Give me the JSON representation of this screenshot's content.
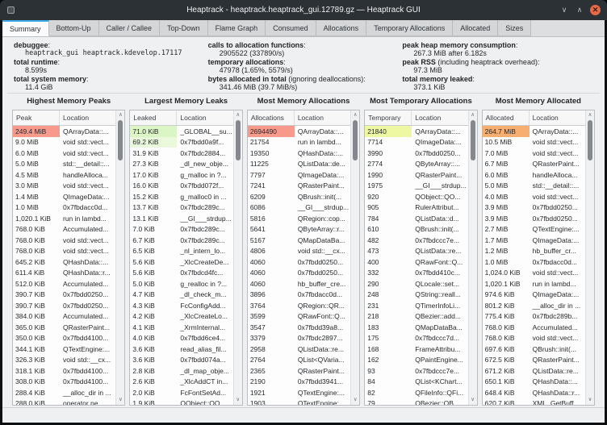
{
  "window": {
    "title": "Heaptrack - heaptrack.heaptrack_gui.12789.gz — Heaptrack GUI",
    "controls": {
      "minimize": "∨",
      "maximize": "∧",
      "close": "✕"
    }
  },
  "icons": {
    "scroll_up": "∧",
    "scroll_down": "∨"
  },
  "colors": {
    "peak_highlight": "#f79a8c",
    "leak_highlight_1": "#dcf5c4",
    "leak_highlight_2": "#eaf8dc",
    "temporary_highlight": "#eef7a2",
    "allocated_highlight": "#f6ae71"
  },
  "tabs": [
    {
      "label": "Summary",
      "active": true
    },
    {
      "label": "Bottom-Up",
      "active": false
    },
    {
      "label": "Caller / Callee",
      "active": false
    },
    {
      "label": "Top-Down",
      "active": false
    },
    {
      "label": "Flame Graph",
      "active": false
    },
    {
      "label": "Consumed",
      "active": false
    },
    {
      "label": "Allocations",
      "active": false
    },
    {
      "label": "Temporary Allocations",
      "active": false
    },
    {
      "label": "Allocated",
      "active": false
    },
    {
      "label": "Sizes",
      "active": false
    }
  ],
  "summary": {
    "columns": [
      [
        {
          "label": "debuggee",
          "suffix": ":",
          "value": "heaptrack_gui heaptrack.kdevelop.17117",
          "mono": true
        },
        {
          "label": "total runtime",
          "suffix": ":",
          "value": "8.599s",
          "mono": false
        },
        {
          "label": "total system memory",
          "suffix": ":",
          "value": "11.4 GiB",
          "mono": false
        }
      ],
      [
        {
          "label": "calls to allocation functions",
          "suffix": ":",
          "value": "2905522 (337890/s)",
          "mono": false
        },
        {
          "label": "temporary allocations",
          "suffix": ":",
          "value": "47978 (1.65%, 5579/s)",
          "mono": false
        },
        {
          "label": "bytes allocated in total",
          "suffix": " (ignoring deallocations):",
          "value": "341.46 MiB (39.7 MiB/s)",
          "mono": false
        }
      ],
      [
        {
          "label": "peak heap memory consumption",
          "suffix": ":",
          "value": "267.3 MiB after 6.182s",
          "mono": false
        },
        {
          "label": "peak RSS",
          "suffix": " (including heaptrack overhead):",
          "value": "97.3 MiB",
          "mono": false
        },
        {
          "label": "total memory leaked",
          "suffix": ":",
          "value": "373.1 KiB",
          "mono": false
        }
      ]
    ]
  },
  "panels": [
    {
      "title": "Highest Memory Peaks",
      "value_header": "Peak",
      "location_header": "Location",
      "rows": [
        {
          "value": "249.4 MiB",
          "location": "QArrayData::...",
          "hl": "#f79a8c"
        },
        {
          "value": "9.0 MiB",
          "location": "void std::vect...",
          "hl": null
        },
        {
          "value": "6.0 MiB",
          "location": "void std::vect...",
          "hl": null
        },
        {
          "value": "5.0 MiB",
          "location": "std::__detail::...",
          "hl": null
        },
        {
          "value": "4.5 MiB",
          "location": "handleAlloca...",
          "hl": null
        },
        {
          "value": "3.0 MiB",
          "location": "void std::vect...",
          "hl": null
        },
        {
          "value": "1.4 MiB",
          "location": "QImageData:...",
          "hl": null
        },
        {
          "value": "1.0 MiB",
          "location": "0x7fbdacc0d...",
          "hl": null
        },
        {
          "value": "1,020.1 KiB",
          "location": "run in lambd...",
          "hl": null
        },
        {
          "value": "768.0 KiB",
          "location": "Accumulated...",
          "hl": null
        },
        {
          "value": "768.0 KiB",
          "location": "void std::vect...",
          "hl": null
        },
        {
          "value": "768.0 KiB",
          "location": "void std::vect...",
          "hl": null
        },
        {
          "value": "645.2 KiB",
          "location": "QHashData::...",
          "hl": null
        },
        {
          "value": "611.4 KiB",
          "location": "QHashData::r...",
          "hl": null
        },
        {
          "value": "512.0 KiB",
          "location": "Accumulated...",
          "hl": null
        },
        {
          "value": "390.7 KiB",
          "location": "0x7fbdd0250...",
          "hl": null
        },
        {
          "value": "390.7 KiB",
          "location": "0x7fbdd0250...",
          "hl": null
        },
        {
          "value": "384.0 KiB",
          "location": "Accumulated...",
          "hl": null
        },
        {
          "value": "365.0 KiB",
          "location": "QRasterPaint...",
          "hl": null
        },
        {
          "value": "350.0 KiB",
          "location": "0x7fbdd4100...",
          "hl": null
        },
        {
          "value": "344.1 KiB",
          "location": "QTextEngine:...",
          "hl": null
        },
        {
          "value": "326.3 KiB",
          "location": "void std::__cx...",
          "hl": null
        },
        {
          "value": "318.1 KiB",
          "location": "0x7fbdd4100...",
          "hl": null
        },
        {
          "value": "308.0 KiB",
          "location": "0x7fbdd4100...",
          "hl": null
        },
        {
          "value": "288.4 KiB",
          "location": "__alloc_dir in ...",
          "hl": null
        },
        {
          "value": "288.0 KiB",
          "location": "operator ne...",
          "hl": null
        }
      ]
    },
    {
      "title": "Largest Memory Leaks",
      "value_header": "Leaked",
      "location_header": "Location",
      "rows": [
        {
          "value": "71.0 KiB",
          "location": "_GLOBAL__su...",
          "hl": "#dcf5c4"
        },
        {
          "value": "69.2 KiB",
          "location": "0x7fbdd0a9f...",
          "hl": "#eaf8dc"
        },
        {
          "value": "31.9 KiB",
          "location": "0x7fbdc2884...",
          "hl": null
        },
        {
          "value": "27.3 KiB",
          "location": "_dl_new_obje...",
          "hl": null
        },
        {
          "value": "17.0 KiB",
          "location": "g_malloc in ?...",
          "hl": null
        },
        {
          "value": "16.0 KiB",
          "location": "0x7fbdd072f...",
          "hl": null
        },
        {
          "value": "15.2 KiB",
          "location": "g_malloc0 in ...",
          "hl": null
        },
        {
          "value": "13.7 KiB",
          "location": "0x7fbdc289c...",
          "hl": null
        },
        {
          "value": "13.1 KiB",
          "location": "__GI___strdup...",
          "hl": null
        },
        {
          "value": "7.0 KiB",
          "location": "0x7fbdc289c...",
          "hl": null
        },
        {
          "value": "6.7 KiB",
          "location": "0x7fbdc289c...",
          "hl": null
        },
        {
          "value": "6.5 KiB",
          "location": "_nl_intern_lo...",
          "hl": null
        },
        {
          "value": "5.6 KiB",
          "location": "_XlcCreateDe...",
          "hl": null
        },
        {
          "value": "5.6 KiB",
          "location": "0x7fbdcd4fc...",
          "hl": null
        },
        {
          "value": "5.0 KiB",
          "location": "g_realloc in ?...",
          "hl": null
        },
        {
          "value": "4.7 KiB",
          "location": "_dl_check_m...",
          "hl": null
        },
        {
          "value": "4.3 KiB",
          "location": "FcConfigAdd...",
          "hl": null
        },
        {
          "value": "4.2 KiB",
          "location": "_XlcCreateLo...",
          "hl": null
        },
        {
          "value": "4.1 KiB",
          "location": "_XrmInternal...",
          "hl": null
        },
        {
          "value": "4.0 KiB",
          "location": "0x7fbdd6ce4...",
          "hl": null
        },
        {
          "value": "3.6 KiB",
          "location": "read_alias_fil...",
          "hl": null
        },
        {
          "value": "3.6 KiB",
          "location": "0x7fbdd074a...",
          "hl": null
        },
        {
          "value": "2.8 KiB",
          "location": "_dl_map_obje...",
          "hl": null
        },
        {
          "value": "2.6 KiB",
          "location": "_XlcAddCT in...",
          "hl": null
        },
        {
          "value": "2.0 KiB",
          "location": "FcFontSetAd...",
          "hl": null
        },
        {
          "value": "1.9 KiB",
          "location": "QObject::QO...",
          "hl": null
        }
      ]
    },
    {
      "title": "Most Memory Allocations",
      "value_header": "Allocations",
      "location_header": "Location",
      "rows": [
        {
          "value": "2694490",
          "location": "QArrayData::...",
          "hl": "#f79a8c"
        },
        {
          "value": "21754",
          "location": "run in lambd...",
          "hl": null
        },
        {
          "value": "19350",
          "location": "QHashData::...",
          "hl": null
        },
        {
          "value": "11225",
          "location": "QListData::de...",
          "hl": null
        },
        {
          "value": "7797",
          "location": "QImageData:...",
          "hl": null
        },
        {
          "value": "7241",
          "location": "QRasterPaint...",
          "hl": null
        },
        {
          "value": "6209",
          "location": "QBrush::init(...",
          "hl": null
        },
        {
          "value": "6086",
          "location": "__GI___strdup...",
          "hl": null
        },
        {
          "value": "5816",
          "location": "QRegion::cop...",
          "hl": null
        },
        {
          "value": "5641",
          "location": "QByteArray::r...",
          "hl": null
        },
        {
          "value": "5167",
          "location": "QMapDataBa...",
          "hl": null
        },
        {
          "value": "4806",
          "location": "void std::__cx...",
          "hl": null
        },
        {
          "value": "4060",
          "location": "0x7fbdd0250...",
          "hl": null
        },
        {
          "value": "4060",
          "location": "0x7fbdd0250...",
          "hl": null
        },
        {
          "value": "4060",
          "location": "hb_buffer_cre...",
          "hl": null
        },
        {
          "value": "3896",
          "location": "0x7fbdacc0d...",
          "hl": null
        },
        {
          "value": "3764",
          "location": "QRegion::QR...",
          "hl": null
        },
        {
          "value": "3599",
          "location": "QRawFont::Q...",
          "hl": null
        },
        {
          "value": "3547",
          "location": "0x7fbdd39a8...",
          "hl": null
        },
        {
          "value": "3379",
          "location": "0x7fbdc2897...",
          "hl": null
        },
        {
          "value": "2958",
          "location": "QListData::re...",
          "hl": null
        },
        {
          "value": "2764",
          "location": "QList<QVaria...",
          "hl": null
        },
        {
          "value": "2365",
          "location": "QRasterPaint...",
          "hl": null
        },
        {
          "value": "2190",
          "location": "0x7fbdd3941...",
          "hl": null
        },
        {
          "value": "1921",
          "location": "QTextEngine:...",
          "hl": null
        },
        {
          "value": "1903",
          "location": "QTextEngine:...",
          "hl": null
        }
      ]
    },
    {
      "title": "Most Temporary Allocations",
      "value_header": "Temporary",
      "location_header": "Location",
      "rows": [
        {
          "value": "21840",
          "location": "QArrayData::...",
          "hl": "#eef7a2"
        },
        {
          "value": "7714",
          "location": "QImageData:...",
          "hl": null
        },
        {
          "value": "3990",
          "location": "0x7fbdd0250...",
          "hl": null
        },
        {
          "value": "2774",
          "location": "QByteArray::...",
          "hl": null
        },
        {
          "value": "1990",
          "location": "QRasterPaint...",
          "hl": null
        },
        {
          "value": "1975",
          "location": "__GI___strdup...",
          "hl": null
        },
        {
          "value": "920",
          "location": "QObject::QO...",
          "hl": null
        },
        {
          "value": "905",
          "location": "RulerAttribut...",
          "hl": null
        },
        {
          "value": "784",
          "location": "QListData::d...",
          "hl": null
        },
        {
          "value": "610",
          "location": "QBrush::init(...",
          "hl": null
        },
        {
          "value": "482",
          "location": "0x7fbdccc7e...",
          "hl": null
        },
        {
          "value": "473",
          "location": "QListData::re...",
          "hl": null
        },
        {
          "value": "400",
          "location": "QRawFont::Q...",
          "hl": null
        },
        {
          "value": "332",
          "location": "0x7fbdd410c...",
          "hl": null
        },
        {
          "value": "290",
          "location": "QLocale::set...",
          "hl": null
        },
        {
          "value": "248",
          "location": "QString::reall...",
          "hl": null
        },
        {
          "value": "231",
          "location": "QTimerInfoLi...",
          "hl": null
        },
        {
          "value": "218",
          "location": "QBezier::add...",
          "hl": null
        },
        {
          "value": "183",
          "location": "QMapDataBa...",
          "hl": null
        },
        {
          "value": "175",
          "location": "0x7fbdccc7d...",
          "hl": null
        },
        {
          "value": "168",
          "location": "FrameAttribu...",
          "hl": null
        },
        {
          "value": "162",
          "location": "QPaintEngine...",
          "hl": null
        },
        {
          "value": "93",
          "location": "0x7fbdccc7e...",
          "hl": null
        },
        {
          "value": "84",
          "location": "QList<KChart...",
          "hl": null
        },
        {
          "value": "82",
          "location": "QFileInfo::QFi...",
          "hl": null
        },
        {
          "value": "79",
          "location": "QBezier::QB...",
          "hl": null
        }
      ]
    },
    {
      "title": "Most Memory Allocated",
      "value_header": "Allocated",
      "location_header": "Location",
      "rows": [
        {
          "value": "264.7 MiB",
          "location": "QArrayData::...",
          "hl": "#f6ae71"
        },
        {
          "value": "10.5 MiB",
          "location": "void std::vect...",
          "hl": null
        },
        {
          "value": "7.0 MiB",
          "location": "void std::vect...",
          "hl": null
        },
        {
          "value": "6.7 MiB",
          "location": "QRasterPaint...",
          "hl": null
        },
        {
          "value": "6.0 MiB",
          "location": "handleAlloca...",
          "hl": null
        },
        {
          "value": "5.0 MiB",
          "location": "std::__detail::...",
          "hl": null
        },
        {
          "value": "4.0 MiB",
          "location": "void std::vect...",
          "hl": null
        },
        {
          "value": "3.9 MiB",
          "location": "0x7fbdd0250...",
          "hl": null
        },
        {
          "value": "3.9 MiB",
          "location": "0x7fbdd0250...",
          "hl": null
        },
        {
          "value": "2.7 MiB",
          "location": "QTextEngine:...",
          "hl": null
        },
        {
          "value": "1.7 MiB",
          "location": "QImageData:...",
          "hl": null
        },
        {
          "value": "1.2 MiB",
          "location": "hb_buffer_cr...",
          "hl": null
        },
        {
          "value": "1.0 MiB",
          "location": "0x7fbdacc0d...",
          "hl": null
        },
        {
          "value": "1,024.0 KiB",
          "location": "void std::vect...",
          "hl": null
        },
        {
          "value": "1,020.1 KiB",
          "location": "run in lambd...",
          "hl": null
        },
        {
          "value": "974.6 KiB",
          "location": "QImageData:...",
          "hl": null
        },
        {
          "value": "801.2 KiB",
          "location": "__alloc_dir in ...",
          "hl": null
        },
        {
          "value": "775.4 KiB",
          "location": "0x7fbdc289b...",
          "hl": null
        },
        {
          "value": "768.0 KiB",
          "location": "Accumulated...",
          "hl": null
        },
        {
          "value": "768.0 KiB",
          "location": "void std::vect...",
          "hl": null
        },
        {
          "value": "697.6 KiB",
          "location": "QBrush::init(...",
          "hl": null
        },
        {
          "value": "672.5 KiB",
          "location": "QRasterPaint...",
          "hl": null
        },
        {
          "value": "671.2 KiB",
          "location": "QListData::re...",
          "hl": null
        },
        {
          "value": "650.1 KiB",
          "location": "QHashData::...",
          "hl": null
        },
        {
          "value": "648.4 KiB",
          "location": "QHashData::r...",
          "hl": null
        },
        {
          "value": "620.7 KiB",
          "location": "XML_GetBuff...",
          "hl": null
        }
      ]
    }
  ]
}
